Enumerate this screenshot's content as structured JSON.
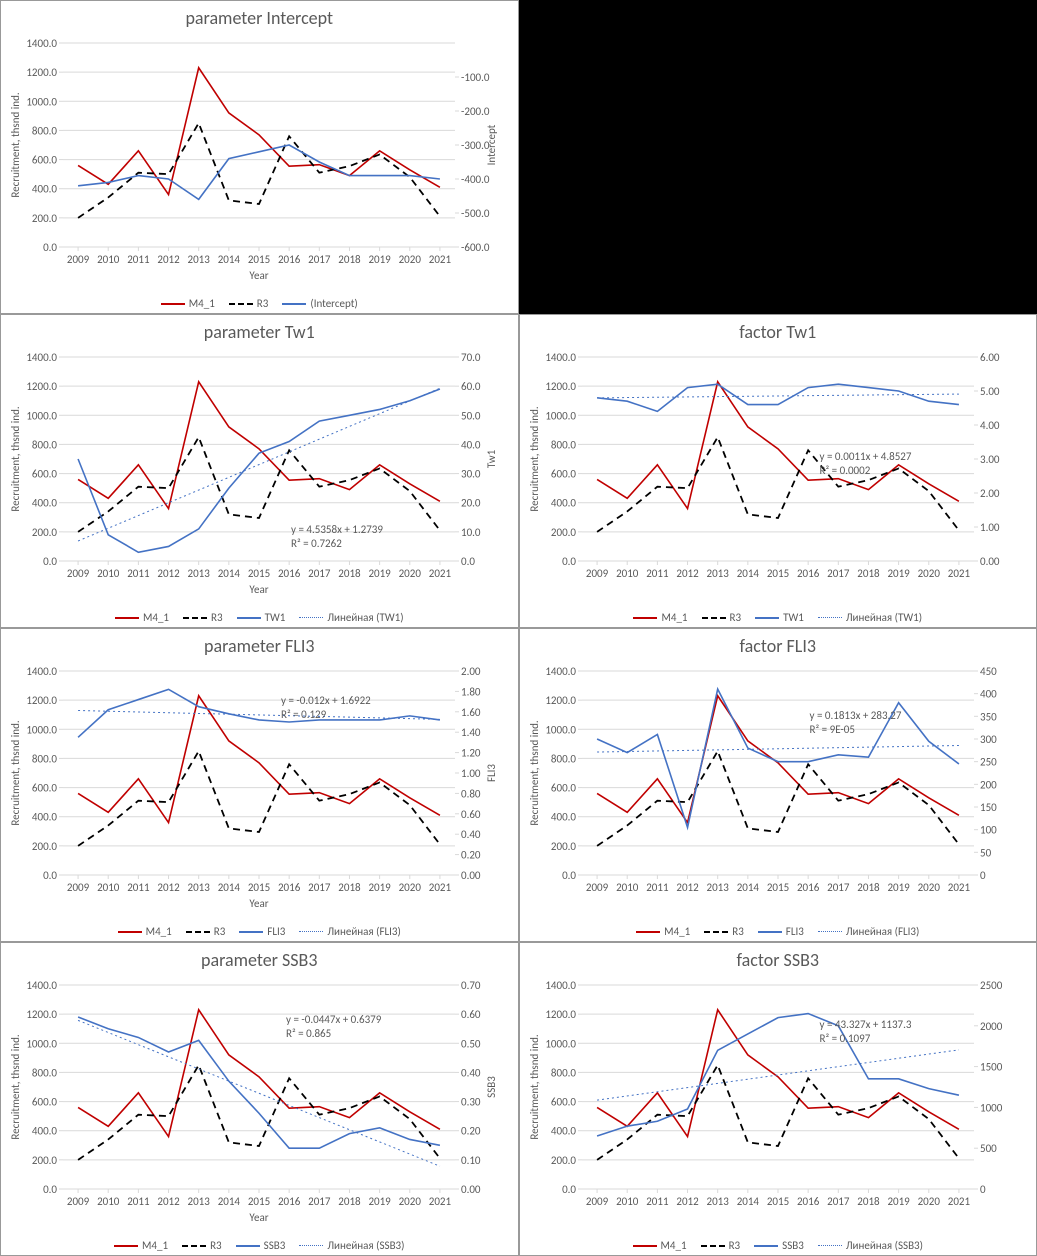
{
  "years": [
    2009,
    2010,
    2011,
    2012,
    2013,
    2014,
    2015,
    2016,
    2017,
    2018,
    2019,
    2020,
    2021
  ],
  "M4_1": [
    560,
    430,
    660,
    360,
    1230,
    920,
    770,
    555,
    565,
    490,
    660,
    530,
    410
  ],
  "R3": [
    200,
    340,
    510,
    500,
    850,
    320,
    295,
    760,
    510,
    555,
    635,
    480,
    210
  ],
  "yaxis": {
    "label": "Recruitment, thsnd ind.",
    "min": 0,
    "max": 1400,
    "step": 200
  },
  "legend_M4": "M4_1",
  "legend_R3": "R3",
  "colors": {
    "m4": "#c00000",
    "r3": "#000000",
    "sec": "#4472c4",
    "trend": "#4472c4",
    "grid": "#d9d9d9",
    "txt": "#595959"
  },
  "charts": {
    "intercept": {
      "title": "parameter  Intercept",
      "sec_label": "Intercept",
      "legend_sec": "(Intercept)",
      "sec": {
        "min": -600,
        "max": 0,
        "step": -100,
        "invert": true,
        "vals": [
          -420,
          -410,
          -390,
          -400,
          -460,
          -340,
          -320,
          -300,
          -350,
          -390,
          -390,
          -390,
          -400
        ]
      },
      "xlabel": "Year"
    },
    "p_tw1": {
      "title": "parameter  Tw1",
      "sec_label": "Tw1",
      "legend_sec": "TW1",
      "legend_trend": "Линейная (TW1)",
      "sec": {
        "min": 0,
        "max": 70,
        "step": 10,
        "vals": [
          35,
          9,
          3,
          5,
          11,
          25,
          37,
          41,
          48,
          50,
          52,
          55,
          59
        ]
      },
      "eq": "y = 4.5358x + 1.2739",
      "r2": "R² = 0.7262",
      "eq_pos": [
        290,
        178
      ],
      "xlabel": "Year",
      "trend": true
    },
    "f_tw1": {
      "title": "factor Tw1",
      "sec_label": "",
      "legend_sec": "TW1",
      "legend_trend": "Линейная (TW1)",
      "sec": {
        "min": 0,
        "max": 6,
        "step": 1,
        "vals": [
          4.8,
          4.7,
          4.4,
          5.1,
          5.2,
          4.6,
          4.6,
          5.1,
          5.2,
          5.1,
          5.0,
          4.7,
          4.6
        ]
      },
      "eq": "y = 0.0011x + 4.8527",
      "r2": "R² = 0.0002",
      "eq_pos": [
        300,
        105
      ],
      "trend": true
    },
    "p_fli3": {
      "title": "parameter  FLI3",
      "sec_label": "FLI3",
      "legend_sec": "FLI3",
      "legend_trend": "Линейная (FLI3)",
      "sec": {
        "min": 0,
        "max": 2,
        "step": 0.2,
        "vals": [
          1.35,
          1.62,
          1.72,
          1.82,
          1.65,
          1.58,
          1.52,
          1.5,
          1.52,
          1.52,
          1.52,
          1.56,
          1.52
        ]
      },
      "eq": "y = -0.012x + 1.6922",
      "r2": "R² = 0.129",
      "eq_pos": [
        280,
        35
      ],
      "xlabel": "Year",
      "trend": true
    },
    "f_fli3": {
      "title": "factor FLI3",
      "sec_label": "",
      "legend_sec": "FLI3",
      "legend_trend": "Линейная (FLI3)",
      "sec": {
        "min": 0,
        "max": 450,
        "step": 50,
        "vals": [
          300,
          270,
          310,
          105,
          410,
          280,
          250,
          250,
          265,
          260,
          380,
          295,
          245
        ]
      },
      "eq": "y = 0.1813x + 283.27",
      "r2": "R² = 9E-05",
      "eq_pos": [
        290,
        50
      ],
      "trend": true
    },
    "p_ssb3": {
      "title": "parameter  SSB3",
      "sec_label": "SSB3",
      "legend_sec": "SSB3",
      "legend_trend": "Линейная (SSB3)",
      "sec": {
        "min": 0,
        "max": 0.7,
        "step": 0.1,
        "vals": [
          0.59,
          0.55,
          0.52,
          0.47,
          0.51,
          0.37,
          0.26,
          0.14,
          0.14,
          0.19,
          0.21,
          0.17,
          0.15
        ]
      },
      "eq": "y = -0.0447x + 0.6379",
      "r2": "R² = 0.865",
      "eq_pos": [
        285,
        40
      ],
      "xlabel": "Year",
      "trend": true
    },
    "f_ssb3": {
      "title": "factor SSB3",
      "sec_label": "",
      "legend_sec": "SSB3",
      "legend_trend": "Линейная (SSB3)",
      "sec": {
        "min": 0,
        "max": 2500,
        "step": 500,
        "vals": [
          650,
          770,
          830,
          980,
          1700,
          1900,
          2100,
          2150,
          2000,
          1350,
          1350,
          1230,
          1150
        ]
      },
      "eq": "y = 43.327x + 1137.3",
      "r2": "R² = 0.1097",
      "eq_pos": [
        300,
        45
      ],
      "trend": true
    }
  }
}
